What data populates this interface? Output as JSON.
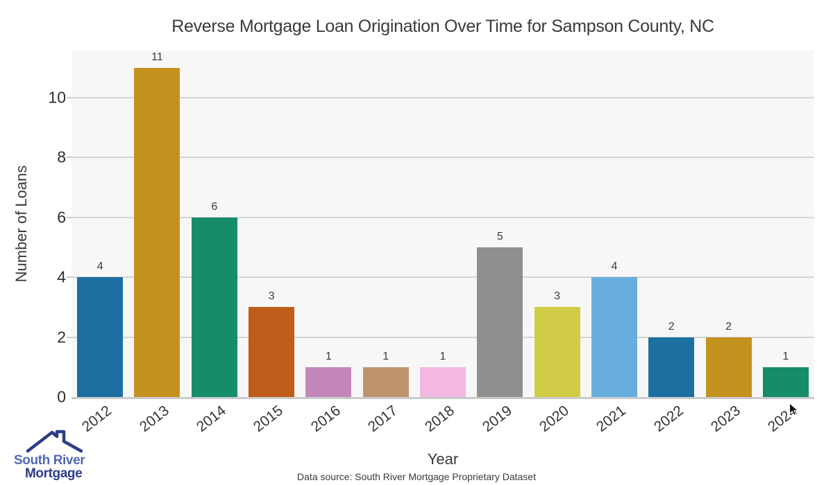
{
  "chart_data": {
    "type": "bar",
    "title": "Reverse Mortgage Loan Origination Over Time for Sampson County, NC",
    "xlabel": "Year",
    "ylabel": "Number of Loans",
    "categories": [
      "2012",
      "2013",
      "2014",
      "2015",
      "2016",
      "2017",
      "2018",
      "2019",
      "2020",
      "2021",
      "2022",
      "2023",
      "2024"
    ],
    "values": [
      4,
      11,
      6,
      3,
      1,
      1,
      1,
      5,
      3,
      4,
      2,
      2,
      1
    ],
    "bar_value_labels": [
      "4",
      "11",
      "6",
      "3",
      "1",
      "1",
      "1",
      "5",
      "3",
      "4",
      "2",
      "2",
      "1"
    ],
    "yticks": [
      0,
      2,
      4,
      6,
      8,
      10
    ],
    "ylim": [
      0,
      11.57
    ],
    "grid": "horizontal",
    "legend": "none",
    "palette": [
      "#1c6fa0",
      "#c4921f",
      "#168c69",
      "#c05d1a",
      "#c287b8",
      "#be946e",
      "#f2b8e2",
      "#8f8f8f",
      "#d0cc45",
      "#67aedd"
    ],
    "plot_bg_color": "#f7f7f7",
    "grid_color": "#d4d4d4",
    "spine_color": "#cbcbcb",
    "text_color": "#3a3a3a"
  },
  "footer": {
    "source": "Data source: South River Mortgage Proprietary Dataset"
  },
  "logo": {
    "line1": "South River",
    "line2": "Mortgage",
    "line1_color": "#5168b6",
    "line2_color": "#2c3c88",
    "icon": "house-roof-icon"
  }
}
